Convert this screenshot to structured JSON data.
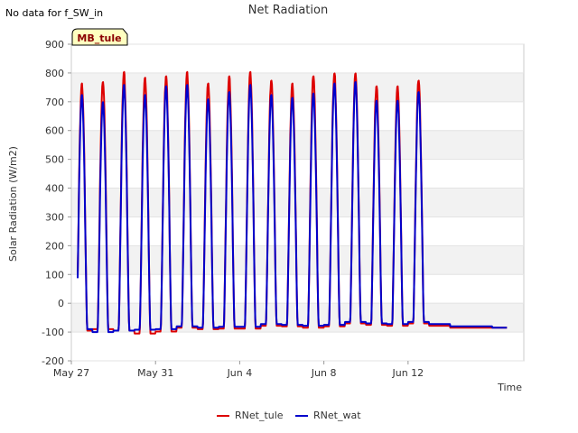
{
  "note": "No data for f_SW_in",
  "chart_data": {
    "type": "line",
    "title": "Net Radiation",
    "xlabel": "Time",
    "ylabel": "Solar Radiation (W/m2)",
    "tag": "MB_tule",
    "ylim": [
      -200,
      900
    ],
    "yticks": [
      -200,
      -100,
      0,
      100,
      200,
      300,
      400,
      500,
      600,
      700,
      800,
      900
    ],
    "xlim": [
      0,
      21.5
    ],
    "xticks": [
      {
        "value": 0,
        "label": "May 27"
      },
      {
        "value": 4,
        "label": "May 31"
      },
      {
        "value": 8,
        "label": "Jun 4"
      },
      {
        "value": 12,
        "label": "Jun 8"
      },
      {
        "value": 16,
        "label": "Jun 12"
      }
    ],
    "grid": true,
    "legend_position": "bottom",
    "series": [
      {
        "name": "RNet_tule",
        "color": "#dd0000",
        "night": [
          -95,
          -90,
          -95,
          -105,
          -98,
          -85,
          -90,
          -88,
          -88,
          -78,
          -80,
          -85,
          -80,
          -70,
          -75,
          -78,
          -70,
          -78,
          -85,
          -85,
          -85
        ],
        "peak": [
          765,
          770,
          805,
          785,
          790,
          805,
          765,
          790,
          805,
          775,
          765,
          790,
          800,
          800,
          755,
          755,
          775
        ]
      },
      {
        "name": "RNet_wat",
        "color": "#0000cc",
        "night": [
          -90,
          -100,
          -95,
          -92,
          -90,
          -80,
          -85,
          -82,
          -82,
          -72,
          -75,
          -78,
          -75,
          -65,
          -70,
          -72,
          -65,
          -72,
          -80,
          -80,
          -85
        ],
        "peak": [
          725,
          700,
          760,
          725,
          755,
          760,
          710,
          735,
          760,
          725,
          715,
          730,
          765,
          770,
          705,
          705,
          735
        ]
      }
    ]
  }
}
